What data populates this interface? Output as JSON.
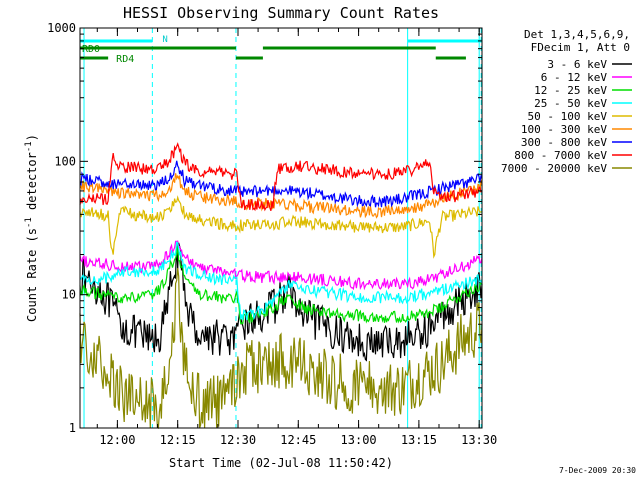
{
  "chart_data": {
    "type": "line",
    "title": "HESSI Observing Summary Count Rates",
    "xlabel": "Start Time (02-Jul-08 11:50:42)",
    "ylabel_main": "Count Rate (s",
    "ylabel_sup1": "-1",
    "ylabel_mid": " detector",
    "ylabel_sup2": "-1",
    "ylabel_end": ")",
    "x_unit": "minutes after 11:50:42",
    "xlim": [
      0,
      100
    ],
    "ylim": [
      1,
      1000
    ],
    "y_scale": "log",
    "x_ticks": [
      {
        "label": "12:00",
        "value": 9.3
      },
      {
        "label": "12:15",
        "value": 24.3
      },
      {
        "label": "12:30",
        "value": 39.3
      },
      {
        "label": "12:45",
        "value": 54.3
      },
      {
        "label": "13:00",
        "value": 69.3
      },
      {
        "label": "13:15",
        "value": 84.3
      },
      {
        "label": "13:30",
        "value": 99.3
      }
    ],
    "y_ticks": [
      {
        "label": "1",
        "value": 1
      },
      {
        "label": "10",
        "value": 10
      },
      {
        "label": "100",
        "value": 100
      },
      {
        "label": "1000",
        "value": 1000
      }
    ],
    "legend_header": [
      "Det 1,3,4,5,6,9,",
      "FDecim 1, Att 0"
    ],
    "legend_placement": "right",
    "series": [
      {
        "name": "3 - 6 keV",
        "color": "#000000",
        "x": [
          0,
          5,
          8,
          10,
          14,
          18,
          20,
          22,
          23.5,
          24.3,
          25,
          26.5,
          28,
          30,
          35,
          39,
          40,
          45,
          48,
          52,
          55,
          60,
          65,
          70,
          72,
          75,
          80,
          84,
          88,
          90,
          95,
          100
        ],
        "y": [
          14,
          11,
          8,
          6,
          5,
          4.5,
          5,
          9,
          17,
          20,
          16,
          9,
          6,
          5,
          4.8,
          4.5,
          6,
          7,
          8,
          11,
          7,
          6,
          5,
          4.5,
          4.3,
          4.3,
          4.5,
          5,
          6,
          7,
          9,
          12
        ]
      },
      {
        "name": "6 - 12 keV",
        "color": "#ff00ff",
        "x": [
          0,
          5,
          10,
          15,
          18,
          20,
          22,
          24.3,
          26,
          28,
          30,
          35,
          40,
          45,
          50,
          55,
          60,
          65,
          70,
          75,
          80,
          85,
          90,
          95,
          100
        ],
        "y": [
          18,
          17,
          16.5,
          16,
          16.5,
          17,
          20,
          26,
          19,
          17,
          16,
          15,
          14,
          13.5,
          13.5,
          13.5,
          13,
          12.5,
          12,
          12,
          12,
          12.5,
          14,
          16,
          19
        ]
      },
      {
        "name": "12 - 25 keV",
        "color": "#00dd00",
        "x": [
          0,
          5,
          10,
          15,
          18,
          20,
          22,
          24.3,
          26,
          28,
          30,
          35,
          39,
          40,
          45,
          48,
          52,
          55,
          60,
          65,
          70,
          75,
          80,
          85,
          90,
          95,
          100
        ],
        "y": [
          11,
          10,
          9.5,
          9.5,
          10,
          11,
          15,
          21,
          14,
          11,
          10,
          9.5,
          9.5,
          6.5,
          7,
          8,
          9.5,
          8,
          7.5,
          7,
          7,
          6.8,
          6.8,
          7,
          8,
          10,
          12
        ]
      },
      {
        "name": "25 - 50 keV",
        "color": "#00ffff",
        "x": [
          0,
          5,
          7,
          8,
          10,
          15,
          18,
          20,
          22,
          24.3,
          26,
          28,
          30,
          35,
          39,
          40,
          45,
          48,
          52,
          55,
          60,
          65,
          70,
          75,
          80,
          85,
          88,
          90,
          95,
          100
        ],
        "y": [
          13,
          13,
          13.5,
          14,
          15,
          15,
          15,
          15.5,
          18,
          23,
          16,
          15,
          14,
          13,
          12.5,
          7,
          7.5,
          9,
          12,
          11,
          10.5,
          10,
          9.5,
          9.5,
          9.5,
          10,
          10.5,
          11,
          12,
          13
        ]
      },
      {
        "name": "50 - 100 keV",
        "color": "#ddbb00",
        "x": [
          0,
          5,
          7,
          8,
          10,
          15,
          18,
          20,
          22,
          24.3,
          26,
          28,
          30,
          35,
          39,
          40,
          48,
          49,
          52,
          55,
          60,
          65,
          70,
          75,
          80,
          82,
          84,
          87,
          88,
          90,
          95,
          100
        ],
        "y": [
          42,
          40,
          39,
          20,
          42,
          39,
          38,
          38,
          44,
          55,
          40,
          37,
          36,
          34,
          33,
          33,
          33,
          34,
          35,
          35,
          34,
          33,
          32,
          32,
          32,
          33,
          34,
          36,
          20,
          38,
          40,
          42
        ]
      },
      {
        "name": "100 - 300 keV",
        "color": "#ff8800",
        "x": [
          0,
          5,
          10,
          15,
          18,
          20,
          22,
          24.3,
          26,
          28,
          30,
          35,
          39,
          40,
          45,
          50,
          55,
          60,
          65,
          70,
          75,
          80,
          85,
          90,
          95,
          100
        ],
        "y": [
          65,
          62,
          58,
          55,
          55,
          56,
          62,
          78,
          60,
          56,
          54,
          52,
          50,
          48,
          48,
          48,
          46,
          45,
          43,
          42,
          42,
          43,
          46,
          52,
          58,
          66
        ]
      },
      {
        "name": "300 - 800 keV",
        "color": "#0000ff",
        "x": [
          0,
          5,
          10,
          15,
          18,
          20,
          22,
          24.3,
          26,
          28,
          30,
          35,
          39,
          40,
          45,
          50,
          55,
          60,
          65,
          70,
          75,
          80,
          85,
          90,
          95,
          100
        ],
        "y": [
          74,
          70,
          68,
          66,
          67,
          68,
          76,
          95,
          72,
          67,
          65,
          62,
          60,
          58,
          60,
          61,
          59,
          56,
          53,
          50,
          50,
          52,
          57,
          63,
          68,
          74
        ]
      },
      {
        "name": "800 - 7000 keV",
        "color": "#ff0000",
        "x": [
          0,
          7,
          8,
          10,
          15,
          18,
          20,
          22,
          24.3,
          26,
          28,
          30,
          35,
          39,
          40,
          48,
          49,
          52,
          55,
          60,
          65,
          70,
          75,
          80,
          85,
          87,
          88,
          90,
          95,
          100
        ],
        "y": [
          52,
          52,
          110,
          92,
          88,
          86,
          88,
          100,
          130,
          96,
          88,
          85,
          82,
          80,
          48,
          46,
          88,
          90,
          92,
          88,
          84,
          80,
          80,
          82,
          90,
          98,
          60,
          52,
          56,
          60
        ]
      },
      {
        "name": "7000 - 20000 keV",
        "color": "#888800",
        "x": [
          0,
          3,
          5,
          8,
          10,
          12,
          15,
          18,
          20,
          22,
          24.3,
          26,
          28,
          30,
          35,
          40,
          45,
          48,
          52,
          55,
          60,
          65,
          70,
          75,
          80,
          85,
          90,
          95,
          100
        ],
        "y": [
          5,
          4,
          3.5,
          2.5,
          2,
          1.6,
          1.5,
          1.5,
          1.6,
          3,
          12,
          3,
          1.7,
          1.5,
          1.5,
          2.5,
          3,
          3.2,
          3.2,
          3,
          2.5,
          2.2,
          2,
          2,
          2,
          2.5,
          3,
          4.5,
          6
        ]
      }
    ],
    "n_label": "N",
    "rd_labels": [
      "RD0",
      "RD4"
    ]
  },
  "footer": {
    "date_stamp": "7-Dec-2009 20:30"
  }
}
